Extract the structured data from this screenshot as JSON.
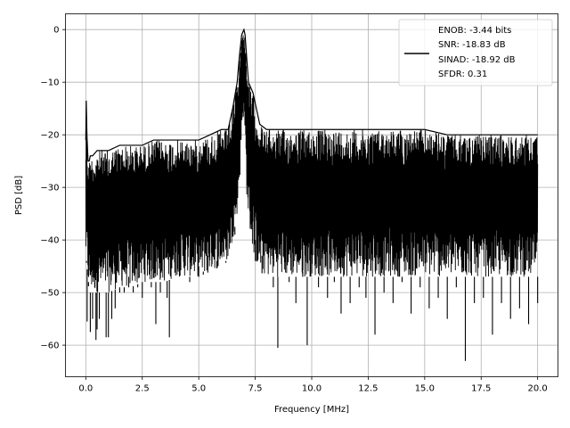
{
  "chart_data": {
    "type": "line",
    "title": "",
    "xlabel": "Frequency [MHz]",
    "ylabel": "PSD [dB]",
    "xlim": [
      -0.9,
      20.9
    ],
    "ylim": [
      -66,
      3
    ],
    "xticks": [
      0.0,
      2.5,
      5.0,
      7.5,
      10.0,
      12.5,
      15.0,
      17.5,
      20.0
    ],
    "xtick_labels": [
      "0.0",
      "2.5",
      "5.0",
      "7.5",
      "10.0",
      "12.5",
      "15.0",
      "17.5",
      "20.0"
    ],
    "yticks": [
      0,
      -10,
      -20,
      -30,
      -40,
      -50,
      -60
    ],
    "ytick_labels": [
      "0",
      "−10",
      "−20",
      "−30",
      "−40",
      "−50",
      "−60"
    ],
    "grid": true,
    "legend_position": "top-right",
    "legend_lines": [
      "ENOB: -3.44 bits",
      "SNR: -18.83 dB",
      "SINAD: -18.92 dB",
      "SFDR: 0.31"
    ],
    "series": [
      {
        "color": "#000000",
        "x": [
          0.0,
          0.02,
          0.05,
          0.1,
          0.15,
          0.2,
          0.3,
          0.5,
          0.7,
          1.0,
          1.5,
          2.0,
          2.5,
          3.0,
          3.5,
          4.0,
          4.5,
          5.0,
          5.5,
          6.0,
          6.3,
          6.5,
          6.7,
          6.8,
          6.9,
          7.0,
          7.05,
          7.1,
          7.2,
          7.3,
          7.4,
          7.5,
          7.7,
          8.0,
          8.5,
          9.0,
          9.5,
          10.0,
          11.0,
          12.0,
          13.0,
          14.0,
          15.0,
          16.0,
          16.8,
          17.0,
          18.0,
          19.0,
          20.0
        ],
        "y": [
          -43,
          -13.5,
          -22,
          -45,
          -55,
          -25,
          -57,
          -58.5,
          -46,
          -58.5,
          -45,
          -50,
          -50,
          -58.5,
          -55,
          -48,
          -46,
          -46,
          -48,
          -45,
          -44,
          -29,
          -19,
          -12,
          -5,
          0,
          -3,
          -10,
          -20,
          -11,
          -15,
          -19,
          -28,
          -50,
          -60.5,
          -52,
          -45,
          -60,
          -50,
          -58,
          -52,
          -48,
          -50,
          -55,
          -63,
          -40,
          -52,
          -55,
          -45
        ],
        "band_top": [
          -21,
          -13.5,
          -20,
          -25,
          -25,
          -24,
          -24,
          -23,
          -23,
          -23,
          -22,
          -22,
          -22,
          -21,
          -21,
          -21,
          -21,
          -21,
          -20,
          -19,
          -19,
          -15,
          -10,
          -5,
          -1,
          0,
          -1,
          -4,
          -10,
          -11,
          -12,
          -14,
          -18,
          -19,
          -19,
          -19,
          -19,
          -19,
          -19,
          -19,
          -19,
          -19,
          -19,
          -20,
          -20,
          -20,
          -20,
          -20,
          -20
        ],
        "band_bottom": [
          -44,
          -44,
          -45,
          -48,
          -50,
          -50,
          -50,
          -50,
          -50,
          -50,
          -49,
          -49,
          -48,
          -48,
          -48,
          -47,
          -47,
          -47,
          -46,
          -45,
          -44,
          -40,
          -35,
          -30,
          -22,
          -15,
          -20,
          -30,
          -36,
          -40,
          -42,
          -44,
          -46,
          -47,
          -47,
          -47,
          -47,
          -47,
          -47,
          -47,
          -47,
          -47,
          -47,
          -47,
          -47,
          -47,
          -47,
          -47,
          -47
        ],
        "dips": [
          [
            0.03,
            -44
          ],
          [
            0.06,
            -55.5
          ],
          [
            0.12,
            -48
          ],
          [
            0.2,
            -57.5
          ],
          [
            0.3,
            -55
          ],
          [
            0.45,
            -59
          ],
          [
            0.5,
            -57
          ],
          [
            0.6,
            -55
          ],
          [
            0.75,
            -50
          ],
          [
            0.9,
            -58.5
          ],
          [
            1.0,
            -58.5
          ],
          [
            1.15,
            -55
          ],
          [
            1.3,
            -53
          ],
          [
            1.5,
            -50
          ],
          [
            1.7,
            -50
          ],
          [
            1.9,
            -47
          ],
          [
            2.1,
            -50
          ],
          [
            2.3,
            -49
          ],
          [
            2.5,
            -51
          ],
          [
            2.7,
            -48
          ],
          [
            2.9,
            -49
          ],
          [
            3.1,
            -56
          ],
          [
            3.3,
            -50
          ],
          [
            3.6,
            -51
          ],
          [
            3.7,
            -58.5
          ],
          [
            4.0,
            -47
          ],
          [
            4.4,
            -47
          ],
          [
            4.6,
            -48
          ],
          [
            5.0,
            -45
          ],
          [
            5.2,
            -46
          ],
          [
            5.4,
            -43
          ],
          [
            5.8,
            -44
          ],
          [
            6.2,
            -44
          ],
          [
            6.6,
            -39
          ],
          [
            7.5,
            -40
          ],
          [
            7.8,
            -43
          ],
          [
            8.1,
            -47
          ],
          [
            8.3,
            -49
          ],
          [
            8.5,
            -60.5
          ],
          [
            9.0,
            -48
          ],
          [
            9.3,
            -52
          ],
          [
            9.6,
            -46
          ],
          [
            9.8,
            -60
          ],
          [
            10.3,
            -49
          ],
          [
            10.7,
            -51
          ],
          [
            11.0,
            -48
          ],
          [
            11.3,
            -54
          ],
          [
            11.7,
            -52
          ],
          [
            12.1,
            -49
          ],
          [
            12.4,
            -51
          ],
          [
            12.8,
            -58
          ],
          [
            13.2,
            -50
          ],
          [
            13.6,
            -52
          ],
          [
            14.0,
            -48
          ],
          [
            14.4,
            -54
          ],
          [
            14.8,
            -49
          ],
          [
            15.2,
            -53
          ],
          [
            15.6,
            -51
          ],
          [
            16.0,
            -55
          ],
          [
            16.4,
            -49
          ],
          [
            16.8,
            -63
          ],
          [
            17.2,
            -52
          ],
          [
            17.6,
            -51
          ],
          [
            18.0,
            -58
          ],
          [
            18.4,
            -52
          ],
          [
            18.8,
            -55
          ],
          [
            19.2,
            -53
          ],
          [
            19.6,
            -56
          ],
          [
            20.0,
            -52
          ]
        ]
      }
    ]
  }
}
